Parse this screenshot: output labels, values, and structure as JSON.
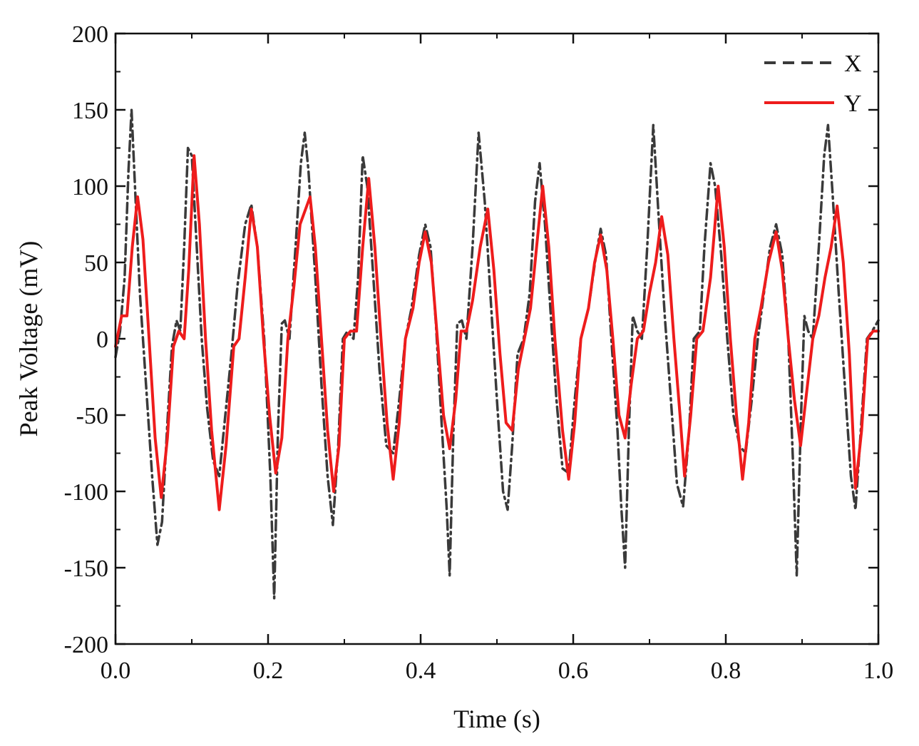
{
  "chart_data": {
    "type": "line",
    "title": "",
    "xlabel": "Time (s)",
    "ylabel": "Peak Voltage (mV)",
    "xlim": [
      0.0,
      1.0
    ],
    "ylim": [
      -200,
      200
    ],
    "x_ticks": [
      0.0,
      0.2,
      0.4,
      0.6,
      0.8,
      1.0
    ],
    "x_tick_labels": [
      "0.0",
      "0.2",
      "0.4",
      "0.6",
      "0.8",
      "1.0"
    ],
    "y_ticks": [
      200,
      150,
      100,
      50,
      0,
      -50,
      -100,
      -150,
      -200
    ],
    "y_tick_labels": [
      "200",
      "150",
      "100",
      "50",
      "0",
      "-50",
      "-100",
      "-150",
      "-200"
    ],
    "grid": false,
    "legend_position": "top-right",
    "series": [
      {
        "name": "X",
        "color": "#3a3a3a",
        "dash": "dashed",
        "points": [
          [
            0.0,
            -12
          ],
          [
            0.006,
            5
          ],
          [
            0.012,
            40
          ],
          [
            0.017,
            110
          ],
          [
            0.021,
            150
          ],
          [
            0.026,
            95
          ],
          [
            0.032,
            30
          ],
          [
            0.04,
            -30
          ],
          [
            0.048,
            -90
          ],
          [
            0.055,
            -135
          ],
          [
            0.061,
            -120
          ],
          [
            0.068,
            -55
          ],
          [
            0.074,
            -5
          ],
          [
            0.08,
            12
          ],
          [
            0.085,
            5
          ],
          [
            0.09,
            60
          ],
          [
            0.095,
            125
          ],
          [
            0.1,
            120
          ],
          [
            0.106,
            65
          ],
          [
            0.113,
            0
          ],
          [
            0.12,
            -45
          ],
          [
            0.128,
            -80
          ],
          [
            0.136,
            -90
          ],
          [
            0.145,
            -45
          ],
          [
            0.152,
            -10
          ],
          [
            0.16,
            35
          ],
          [
            0.17,
            75
          ],
          [
            0.178,
            88
          ],
          [
            0.186,
            60
          ],
          [
            0.195,
            0
          ],
          [
            0.203,
            -90
          ],
          [
            0.208,
            -170
          ],
          [
            0.213,
            -60
          ],
          [
            0.218,
            10
          ],
          [
            0.222,
            12
          ],
          [
            0.228,
            0
          ],
          [
            0.236,
            60
          ],
          [
            0.243,
            115
          ],
          [
            0.248,
            135
          ],
          [
            0.253,
            110
          ],
          [
            0.262,
            40
          ],
          [
            0.27,
            -30
          ],
          [
            0.278,
            -90
          ],
          [
            0.285,
            -122
          ],
          [
            0.292,
            -70
          ],
          [
            0.298,
            0
          ],
          [
            0.304,
            5
          ],
          [
            0.312,
            0
          ],
          [
            0.318,
            40
          ],
          [
            0.324,
            120
          ],
          [
            0.33,
            100
          ],
          [
            0.338,
            40
          ],
          [
            0.346,
            -20
          ],
          [
            0.355,
            -70
          ],
          [
            0.364,
            -75
          ],
          [
            0.372,
            -40
          ],
          [
            0.38,
            0
          ],
          [
            0.388,
            20
          ],
          [
            0.398,
            55
          ],
          [
            0.406,
            75
          ],
          [
            0.413,
            60
          ],
          [
            0.42,
            10
          ],
          [
            0.428,
            -60
          ],
          [
            0.434,
            -110
          ],
          [
            0.438,
            -155
          ],
          [
            0.443,
            -60
          ],
          [
            0.448,
            10
          ],
          [
            0.454,
            12
          ],
          [
            0.46,
            0
          ],
          [
            0.468,
            60
          ],
          [
            0.476,
            135
          ],
          [
            0.484,
            90
          ],
          [
            0.492,
            25
          ],
          [
            0.5,
            -40
          ],
          [
            0.508,
            -100
          ],
          [
            0.514,
            -112
          ],
          [
            0.52,
            -70
          ],
          [
            0.527,
            -10
          ],
          [
            0.535,
            0
          ],
          [
            0.543,
            30
          ],
          [
            0.55,
            90
          ],
          [
            0.556,
            115
          ],
          [
            0.563,
            75
          ],
          [
            0.57,
            20
          ],
          [
            0.578,
            -40
          ],
          [
            0.586,
            -85
          ],
          [
            0.594,
            -88
          ],
          [
            0.602,
            -40
          ],
          [
            0.61,
            0
          ],
          [
            0.62,
            20
          ],
          [
            0.63,
            55
          ],
          [
            0.636,
            72
          ],
          [
            0.643,
            55
          ],
          [
            0.65,
            0
          ],
          [
            0.658,
            -60
          ],
          [
            0.663,
            -110
          ],
          [
            0.668,
            -150
          ],
          [
            0.673,
            -60
          ],
          [
            0.678,
            15
          ],
          [
            0.684,
            5
          ],
          [
            0.69,
            0
          ],
          [
            0.697,
            60
          ],
          [
            0.705,
            140
          ],
          [
            0.712,
            80
          ],
          [
            0.72,
            15
          ],
          [
            0.728,
            -40
          ],
          [
            0.736,
            -95
          ],
          [
            0.744,
            -110
          ],
          [
            0.752,
            -60
          ],
          [
            0.758,
            0
          ],
          [
            0.766,
            5
          ],
          [
            0.772,
            60
          ],
          [
            0.78,
            115
          ],
          [
            0.786,
            100
          ],
          [
            0.794,
            55
          ],
          [
            0.802,
            0
          ],
          [
            0.81,
            -50
          ],
          [
            0.818,
            -70
          ],
          [
            0.826,
            -75
          ],
          [
            0.834,
            -40
          ],
          [
            0.842,
            0
          ],
          [
            0.85,
            30
          ],
          [
            0.858,
            60
          ],
          [
            0.866,
            75
          ],
          [
            0.874,
            55
          ],
          [
            0.882,
            0
          ],
          [
            0.888,
            -80
          ],
          [
            0.893,
            -155
          ],
          [
            0.898,
            -60
          ],
          [
            0.903,
            15
          ],
          [
            0.908,
            5
          ],
          [
            0.914,
            0
          ],
          [
            0.922,
            60
          ],
          [
            0.929,
            120
          ],
          [
            0.934,
            140
          ],
          [
            0.94,
            95
          ],
          [
            0.948,
            30
          ],
          [
            0.956,
            -30
          ],
          [
            0.964,
            -90
          ],
          [
            0.97,
            -112
          ],
          [
            0.977,
            -60
          ],
          [
            0.985,
            0
          ],
          [
            0.992,
            5
          ],
          [
            1.0,
            12
          ]
        ]
      },
      {
        "name": "Y",
        "color": "#ee1c1c",
        "dash": "solid",
        "points": [
          [
            0.0,
            -5
          ],
          [
            0.008,
            15
          ],
          [
            0.015,
            15
          ],
          [
            0.022,
            60
          ],
          [
            0.029,
            93
          ],
          [
            0.036,
            65
          ],
          [
            0.044,
            0
          ],
          [
            0.052,
            -65
          ],
          [
            0.06,
            -104
          ],
          [
            0.068,
            -65
          ],
          [
            0.076,
            -5
          ],
          [
            0.083,
            5
          ],
          [
            0.09,
            0
          ],
          [
            0.096,
            45
          ],
          [
            0.103,
            120
          ],
          [
            0.11,
            75
          ],
          [
            0.118,
            0
          ],
          [
            0.126,
            -60
          ],
          [
            0.136,
            -112
          ],
          [
            0.145,
            -70
          ],
          [
            0.155,
            -5
          ],
          [
            0.162,
            0
          ],
          [
            0.17,
            40
          ],
          [
            0.178,
            85
          ],
          [
            0.186,
            60
          ],
          [
            0.194,
            0
          ],
          [
            0.202,
            -50
          ],
          [
            0.21,
            -88
          ],
          [
            0.218,
            -65
          ],
          [
            0.226,
            0
          ],
          [
            0.234,
            35
          ],
          [
            0.242,
            75
          ],
          [
            0.255,
            93
          ],
          [
            0.262,
            60
          ],
          [
            0.27,
            0
          ],
          [
            0.278,
            -60
          ],
          [
            0.286,
            -100
          ],
          [
            0.293,
            -70
          ],
          [
            0.3,
            0
          ],
          [
            0.308,
            5
          ],
          [
            0.316,
            5
          ],
          [
            0.324,
            60
          ],
          [
            0.332,
            105
          ],
          [
            0.34,
            60
          ],
          [
            0.348,
            0
          ],
          [
            0.356,
            -55
          ],
          [
            0.364,
            -92
          ],
          [
            0.372,
            -55
          ],
          [
            0.38,
            0
          ],
          [
            0.39,
            20
          ],
          [
            0.398,
            50
          ],
          [
            0.406,
            70
          ],
          [
            0.414,
            50
          ],
          [
            0.422,
            0
          ],
          [
            0.43,
            -50
          ],
          [
            0.438,
            -72
          ],
          [
            0.446,
            -40
          ],
          [
            0.453,
            5
          ],
          [
            0.46,
            5
          ],
          [
            0.468,
            25
          ],
          [
            0.478,
            60
          ],
          [
            0.488,
            85
          ],
          [
            0.496,
            45
          ],
          [
            0.504,
            -10
          ],
          [
            0.512,
            -55
          ],
          [
            0.52,
            -60
          ],
          [
            0.528,
            -20
          ],
          [
            0.536,
            0
          ],
          [
            0.544,
            20
          ],
          [
            0.552,
            60
          ],
          [
            0.56,
            100
          ],
          [
            0.568,
            60
          ],
          [
            0.576,
            0
          ],
          [
            0.586,
            -60
          ],
          [
            0.594,
            -92
          ],
          [
            0.602,
            -55
          ],
          [
            0.61,
            0
          ],
          [
            0.62,
            20
          ],
          [
            0.628,
            50
          ],
          [
            0.636,
            68
          ],
          [
            0.644,
            45
          ],
          [
            0.652,
            0
          ],
          [
            0.66,
            -50
          ],
          [
            0.668,
            -65
          ],
          [
            0.676,
            -30
          ],
          [
            0.684,
            0
          ],
          [
            0.692,
            5
          ],
          [
            0.7,
            30
          ],
          [
            0.708,
            50
          ],
          [
            0.716,
            80
          ],
          [
            0.724,
            55
          ],
          [
            0.732,
            0
          ],
          [
            0.74,
            -50
          ],
          [
            0.746,
            -90
          ],
          [
            0.754,
            -50
          ],
          [
            0.762,
            0
          ],
          [
            0.77,
            5
          ],
          [
            0.78,
            40
          ],
          [
            0.79,
            100
          ],
          [
            0.798,
            60
          ],
          [
            0.806,
            0
          ],
          [
            0.814,
            -50
          ],
          [
            0.822,
            -92
          ],
          [
            0.83,
            -55
          ],
          [
            0.838,
            0
          ],
          [
            0.846,
            20
          ],
          [
            0.856,
            50
          ],
          [
            0.866,
            70
          ],
          [
            0.874,
            45
          ],
          [
            0.882,
            0
          ],
          [
            0.89,
            -40
          ],
          [
            0.898,
            -70
          ],
          [
            0.906,
            -35
          ],
          [
            0.914,
            0
          ],
          [
            0.922,
            15
          ],
          [
            0.93,
            40
          ],
          [
            0.938,
            60
          ],
          [
            0.946,
            87
          ],
          [
            0.954,
            50
          ],
          [
            0.962,
            -10
          ],
          [
            0.97,
            -98
          ],
          [
            0.978,
            -60
          ],
          [
            0.986,
            0
          ],
          [
            0.993,
            5
          ],
          [
            1.0,
            5
          ]
        ]
      }
    ]
  }
}
